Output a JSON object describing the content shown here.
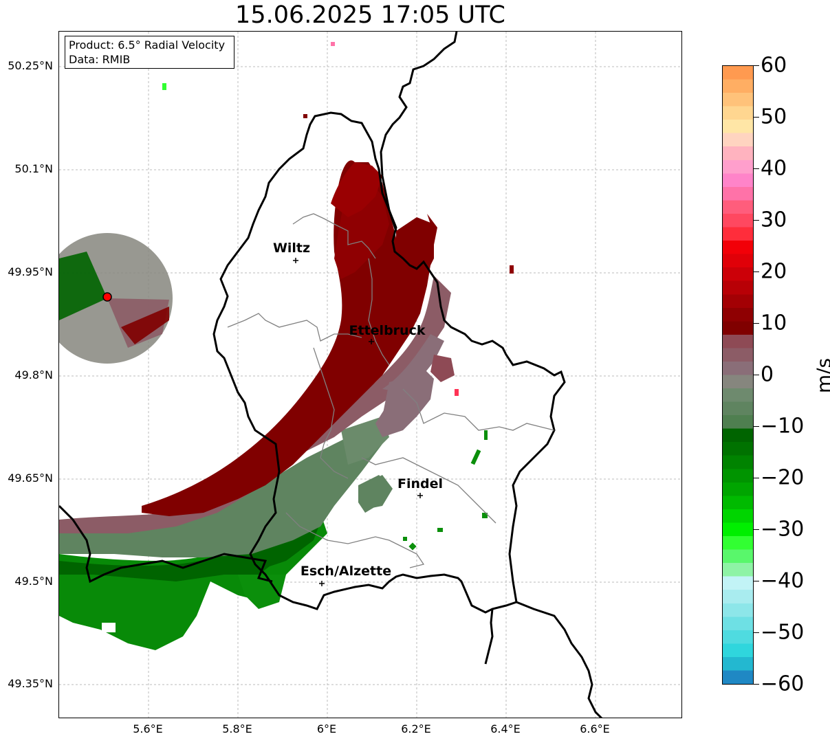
{
  "title": "15.06.2025 17:05 UTC",
  "info": {
    "product": "Product: 6.5° Radial Velocity",
    "data": "Data: RMIB"
  },
  "axes": {
    "lat_ticks": [
      "50.25°N",
      "50.1°N",
      "49.95°N",
      "49.8°N",
      "49.65°N",
      "49.5°N",
      "49.35°N"
    ],
    "lon_ticks": [
      "5.6°E",
      "5.8°E",
      "6°E",
      "6.2°E",
      "6.4°E",
      "6.6°E"
    ]
  },
  "cities": [
    {
      "name": "Wiltz"
    },
    {
      "name": "Ettelbruck"
    },
    {
      "name": "Findel"
    },
    {
      "name": "Esch/Alzette"
    }
  ],
  "colorbar": {
    "unit": "m/s",
    "ticks": [
      "60",
      "50",
      "40",
      "30",
      "20",
      "10",
      "0",
      "−10",
      "−20",
      "−30",
      "−40",
      "−50",
      "−60"
    ],
    "colors": [
      "#ff9a50",
      "#ffae63",
      "#ffc27a",
      "#ffd690",
      "#ffe6a6",
      "#ffd4c0",
      "#ffb3bf",
      "#ff9fcc",
      "#ff84c9",
      "#ff72a8",
      "#ff5d7c",
      "#ff4860",
      "#ff2d3b",
      "#f20008",
      "#e00008",
      "#cc0008",
      "#b80006",
      "#a30004",
      "#8f0002",
      "#800000",
      "#8e4a55",
      "#8c5c66",
      "#8a6e78",
      "#86867e",
      "#6e8a6e",
      "#5f8460",
      "#4f7f50",
      "#006400",
      "#007200",
      "#008300",
      "#009400",
      "#00a500",
      "#00ba00",
      "#00d500",
      "#00ef00",
      "#32ff32",
      "#59f76b",
      "#8ef3a5",
      "#c2f3f6",
      "#a9ecef",
      "#8de6e9",
      "#6ee0e4",
      "#4fdbe0",
      "#2fd6dd",
      "#23b8d0",
      "#1f88c4"
    ]
  }
}
